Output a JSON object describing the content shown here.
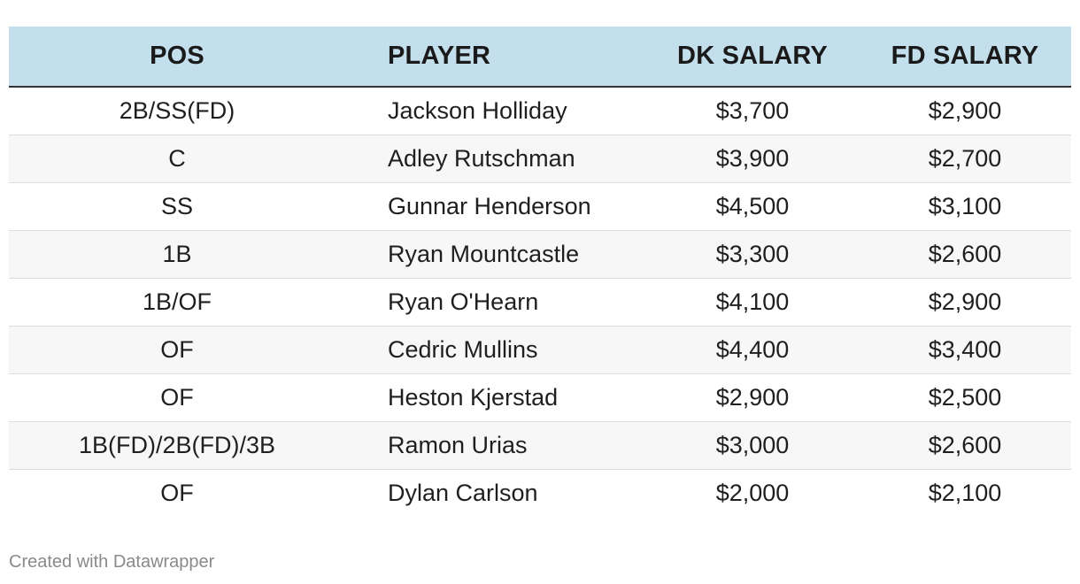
{
  "table": {
    "headers": [
      "POS",
      "PLAYER",
      "DK SALARY",
      "FD SALARY"
    ],
    "rows": [
      [
        "2B/SS(FD)",
        "Jackson Holliday",
        "$3,700",
        "$2,900"
      ],
      [
        "C",
        "Adley Rutschman",
        "$3,900",
        "$2,700"
      ],
      [
        "SS",
        "Gunnar Henderson",
        "$4,500",
        "$3,100"
      ],
      [
        "1B",
        "Ryan Mountcastle",
        "$3,300",
        "$2,600"
      ],
      [
        "1B/OF",
        "Ryan O'Hearn",
        "$4,100",
        "$2,900"
      ],
      [
        "OF",
        "Cedric Mullins",
        "$4,400",
        "$3,400"
      ],
      [
        "OF",
        "Heston Kjerstad",
        "$2,900",
        "$2,500"
      ],
      [
        "1B(FD)/2B(FD)/3B",
        "Ramon Urias",
        "$3,000",
        "$2,600"
      ],
      [
        "OF",
        "Dylan Carlson",
        "$2,000",
        "$2,100"
      ]
    ]
  },
  "footer": {
    "credit": "Created with Datawrapper"
  },
  "colors": {
    "header_bg": "#c3dfeb",
    "alt_row_bg": "#f7f7f7",
    "text": "#1a1a1a",
    "footer_text": "#8a8a8a"
  }
}
